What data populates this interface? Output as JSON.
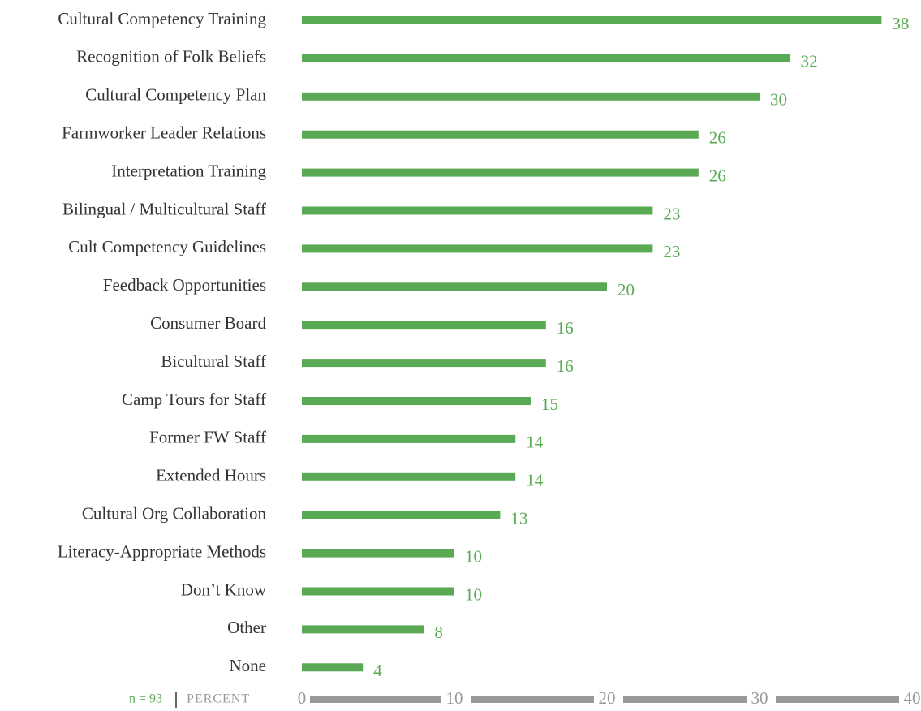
{
  "chart_data": {
    "type": "bar",
    "orientation": "horizontal",
    "categories": [
      "Cultural Competency Training",
      "Recognition of Folk Beliefs",
      "Cultural Competency Plan",
      "Farmworker Leader Relations",
      "Interpretation Training",
      "Bilingual / Multicultural Staff",
      "Cult Competency Guidelines",
      "Feedback Opportunities",
      "Consumer Board",
      "Bicultural Staff",
      "Camp Tours for Staff",
      "Former FW Staff",
      "Extended Hours",
      "Cultural Org Collaboration",
      "Literacy-Appropriate Methods",
      "Don’t Know",
      "Other",
      "None"
    ],
    "values": [
      38,
      32,
      30,
      26,
      26,
      23,
      23,
      20,
      16,
      16,
      15,
      14,
      14,
      13,
      10,
      10,
      8,
      4
    ],
    "color": "#5aaa55",
    "xlim": [
      0,
      40
    ],
    "xticks": [
      0,
      10,
      20,
      30,
      40
    ],
    "axis_color": "#999999",
    "n_label": "n = 93",
    "x_label": "PERCENT"
  }
}
